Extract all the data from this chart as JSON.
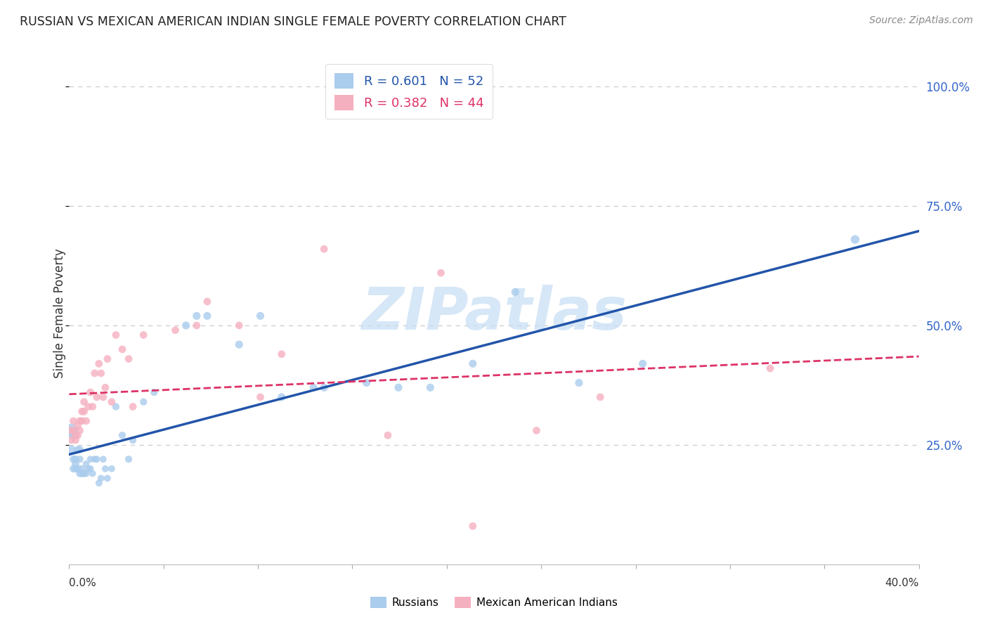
{
  "title": "RUSSIAN VS MEXICAN AMERICAN INDIAN SINGLE FEMALE POVERTY CORRELATION CHART",
  "source": "Source: ZipAtlas.com",
  "ylabel": "Single Female Poverty",
  "xlim": [
    0.0,
    0.4
  ],
  "ylim": [
    0.0,
    1.05
  ],
  "yticks": [
    0.25,
    0.5,
    0.75,
    1.0
  ],
  "ytick_labels": [
    "25.0%",
    "50.0%",
    "75.0%",
    "100.0%"
  ],
  "xtick_labels": [
    "0.0%",
    "",
    "",
    "",
    "",
    "",
    "",
    "",
    "",
    "40.0%"
  ],
  "russian_R": "0.601",
  "russian_N": "52",
  "mexican_R": "0.382",
  "mexican_N": "44",
  "russian_color": "#aacced",
  "russian_line_color": "#2255aa",
  "mexican_color": "#f5b0c0",
  "mexican_line_color": "#dd3366",
  "watermark_text": "ZIPatlas",
  "watermark_color": "#c5ddf5",
  "background_color": "#ffffff",
  "grid_color": "#cccccc",
  "russians_x": [
    0.001,
    0.001,
    0.002,
    0.002,
    0.002,
    0.003,
    0.003,
    0.003,
    0.004,
    0.004,
    0.005,
    0.005,
    0.005,
    0.006,
    0.006,
    0.007,
    0.008,
    0.008,
    0.009,
    0.01,
    0.01,
    0.011,
    0.012,
    0.013,
    0.014,
    0.015,
    0.016,
    0.017,
    0.018,
    0.02,
    0.022,
    0.025,
    0.028,
    0.03,
    0.035,
    0.04,
    0.055,
    0.06,
    0.065,
    0.08,
    0.09,
    0.1,
    0.115,
    0.12,
    0.14,
    0.155,
    0.17,
    0.19,
    0.21,
    0.24,
    0.27,
    0.37
  ],
  "russians_y": [
    0.28,
    0.24,
    0.27,
    0.22,
    0.2,
    0.22,
    0.21,
    0.2,
    0.24,
    0.2,
    0.24,
    0.22,
    0.19,
    0.2,
    0.19,
    0.19,
    0.19,
    0.21,
    0.2,
    0.22,
    0.2,
    0.19,
    0.22,
    0.22,
    0.17,
    0.18,
    0.22,
    0.2,
    0.18,
    0.2,
    0.33,
    0.27,
    0.22,
    0.26,
    0.34,
    0.36,
    0.5,
    0.52,
    0.52,
    0.46,
    0.52,
    0.35,
    0.37,
    0.37,
    0.38,
    0.37,
    0.37,
    0.42,
    0.57,
    0.38,
    0.42,
    0.68
  ],
  "russians_sizes": [
    200,
    80,
    80,
    60,
    60,
    60,
    60,
    60,
    60,
    60,
    60,
    55,
    55,
    55,
    55,
    55,
    50,
    50,
    50,
    50,
    50,
    50,
    50,
    50,
    50,
    50,
    50,
    50,
    50,
    50,
    55,
    55,
    55,
    55,
    55,
    55,
    65,
    65,
    65,
    65,
    65,
    65,
    65,
    65,
    65,
    65,
    65,
    65,
    65,
    65,
    65,
    80
  ],
  "mexicans_x": [
    0.001,
    0.001,
    0.002,
    0.002,
    0.003,
    0.003,
    0.004,
    0.004,
    0.005,
    0.005,
    0.006,
    0.006,
    0.007,
    0.007,
    0.008,
    0.009,
    0.01,
    0.011,
    0.012,
    0.013,
    0.014,
    0.015,
    0.016,
    0.017,
    0.018,
    0.02,
    0.022,
    0.025,
    0.028,
    0.03,
    0.035,
    0.05,
    0.06,
    0.065,
    0.08,
    0.09,
    0.1,
    0.12,
    0.15,
    0.175,
    0.19,
    0.22,
    0.25,
    0.33
  ],
  "mexicans_y": [
    0.28,
    0.26,
    0.3,
    0.28,
    0.27,
    0.26,
    0.29,
    0.27,
    0.3,
    0.28,
    0.32,
    0.3,
    0.34,
    0.32,
    0.3,
    0.33,
    0.36,
    0.33,
    0.4,
    0.35,
    0.42,
    0.4,
    0.35,
    0.37,
    0.43,
    0.34,
    0.48,
    0.45,
    0.43,
    0.33,
    0.48,
    0.49,
    0.5,
    0.55,
    0.5,
    0.35,
    0.44,
    0.66,
    0.27,
    0.61,
    0.08,
    0.28,
    0.35,
    0.41
  ],
  "mexicans_sizes": [
    60,
    60,
    60,
    60,
    60,
    60,
    60,
    60,
    60,
    60,
    60,
    60,
    60,
    60,
    60,
    60,
    60,
    60,
    60,
    60,
    60,
    60,
    60,
    60,
    60,
    60,
    60,
    60,
    60,
    60,
    60,
    60,
    60,
    60,
    60,
    60,
    60,
    60,
    60,
    60,
    60,
    60,
    60,
    60
  ]
}
